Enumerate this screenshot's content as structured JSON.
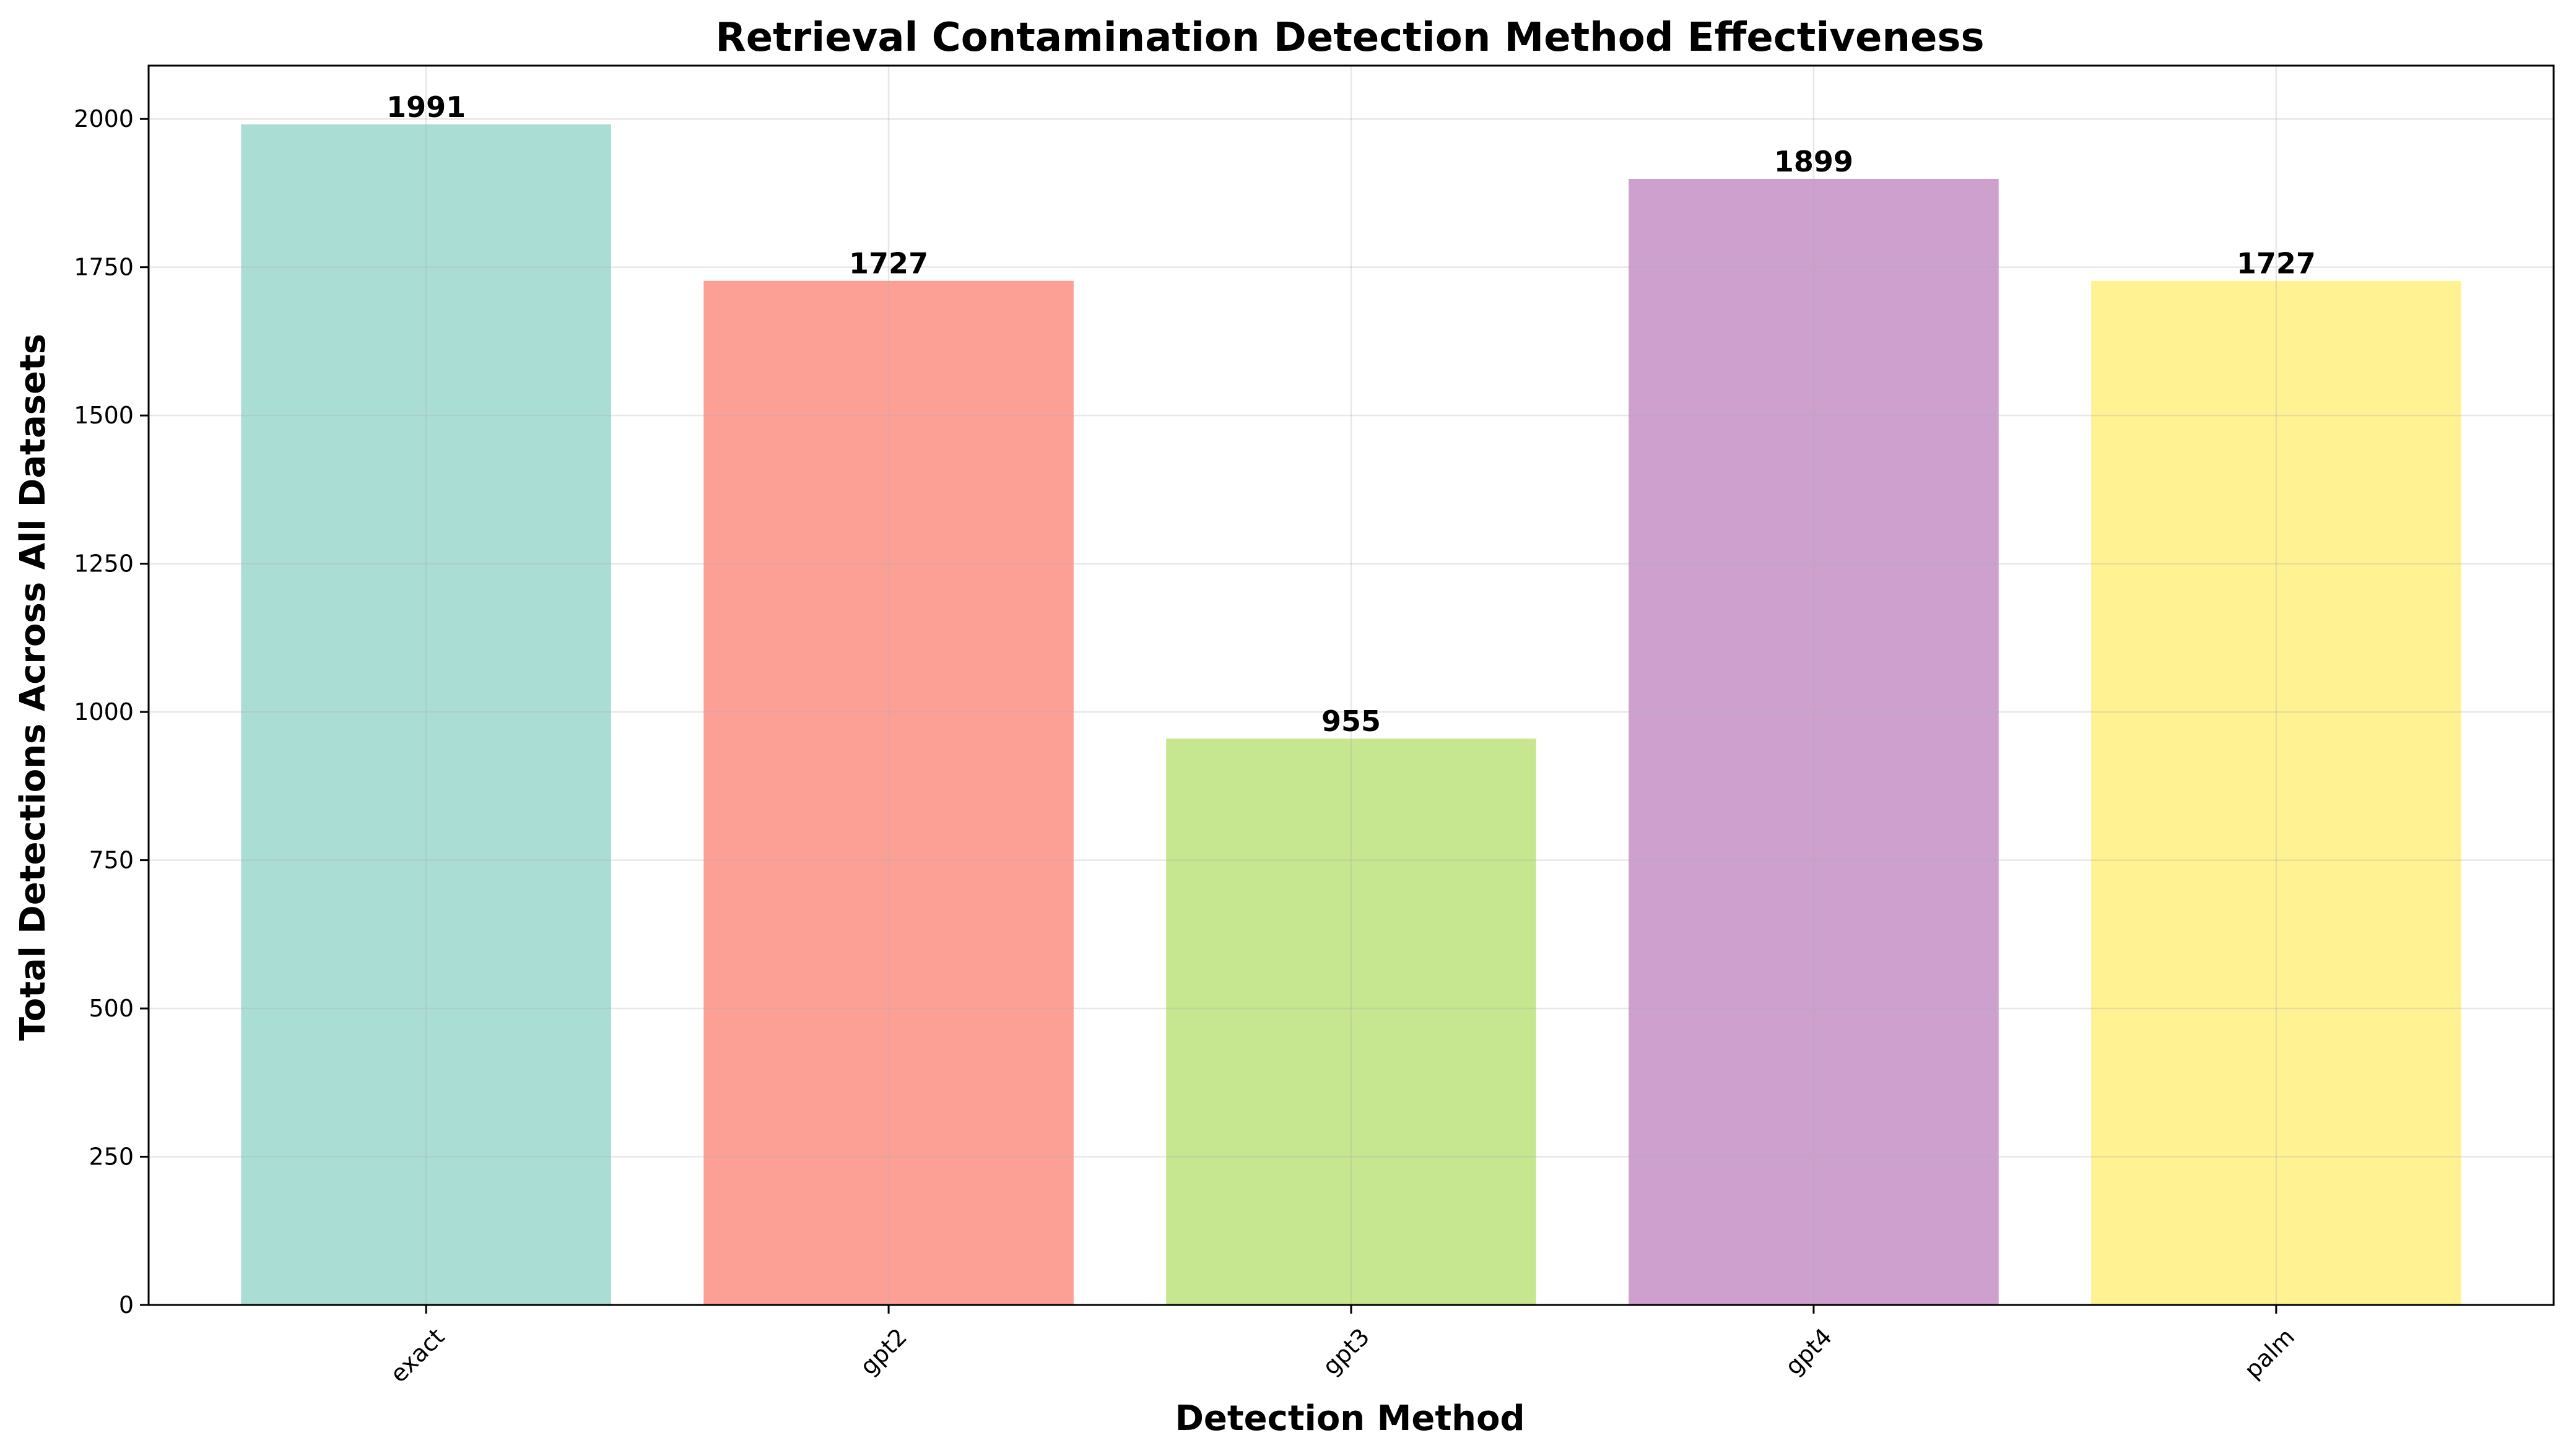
{
  "chart_data": {
    "type": "bar",
    "title": "Retrieval Contamination Detection Method Effectiveness",
    "xlabel": "Detection Method",
    "ylabel": "Total Detections Across All Datasets",
    "categories": [
      "exact",
      "gpt2",
      "gpt3",
      "gpt4",
      "palm"
    ],
    "values": [
      1991,
      1727,
      955,
      1899,
      1727
    ],
    "data_labels": [
      "1991",
      "1727",
      "955",
      "1899",
      "1727"
    ],
    "colors": [
      "#8dd3c7",
      "#fb8072",
      "#b3de69",
      "#bc80bd",
      "#ffed6f"
    ],
    "bar_opacity": 0.75,
    "ylim": [
      0,
      2090
    ],
    "yticks": [
      0,
      250,
      500,
      750,
      1000,
      1250,
      1500,
      1750,
      2000
    ],
    "ytick_labels": [
      "0",
      "250",
      "500",
      "750",
      "1000",
      "1250",
      "1500",
      "1750",
      "2000"
    ],
    "xtick_rotation": 45,
    "grid": true,
    "legend": "none"
  }
}
